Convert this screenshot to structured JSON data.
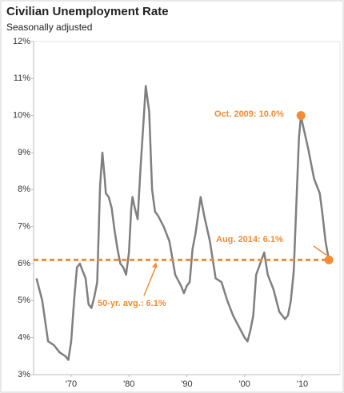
{
  "chart_data": {
    "type": "line",
    "title": "Civilian Unemployment Rate",
    "subtitle": "Seasonally adjusted",
    "x": [
      1964.0,
      1965.0,
      1966.0,
      1967.0,
      1968.0,
      1969.0,
      1969.5,
      1970.0,
      1970.5,
      1971.0,
      1971.5,
      1972.0,
      1972.5,
      1973.0,
      1973.5,
      1974.0,
      1974.5,
      1975.0,
      1975.4,
      1975.8,
      1976.0,
      1976.5,
      1977.0,
      1977.5,
      1978.0,
      1978.5,
      1979.0,
      1979.5,
      1980.0,
      1980.4,
      1980.6,
      1981.0,
      1981.5,
      1982.0,
      1982.5,
      1982.9,
      1983.5,
      1984.0,
      1984.5,
      1985.0,
      1986.0,
      1987.0,
      1988.0,
      1989.0,
      1989.5,
      1990.0,
      1990.5,
      1991.0,
      1991.5,
      1992.4,
      1993.0,
      1994.0,
      1995.0,
      1996.0,
      1997.0,
      1998.0,
      1999.0,
      2000.0,
      2000.5,
      2001.0,
      2001.5,
      2002.0,
      2003.4,
      2004.0,
      2005.0,
      2006.0,
      2007.0,
      2007.5,
      2008.0,
      2008.5,
      2009.0,
      2009.4,
      2009.75,
      2010.0,
      2011.0,
      2012.0,
      2013.0,
      2013.5,
      2014.0,
      2014.58
    ],
    "series": [
      {
        "name": "Unemployment rate",
        "color": "#7f7f7f",
        "values": [
          5.6,
          5.0,
          3.9,
          3.8,
          3.6,
          3.5,
          3.4,
          3.9,
          5.0,
          5.9,
          6.0,
          5.8,
          5.6,
          4.9,
          4.8,
          5.1,
          5.5,
          8.1,
          9.0,
          8.3,
          7.9,
          7.8,
          7.5,
          6.9,
          6.4,
          6.0,
          5.9,
          5.7,
          6.3,
          7.5,
          7.8,
          7.5,
          7.2,
          8.6,
          9.8,
          10.8,
          10.1,
          8.0,
          7.4,
          7.3,
          7.0,
          6.6,
          5.7,
          5.4,
          5.2,
          5.4,
          5.5,
          6.4,
          6.8,
          7.8,
          7.3,
          6.6,
          5.6,
          5.5,
          5.0,
          4.6,
          4.3,
          4.0,
          3.9,
          4.2,
          4.6,
          5.7,
          6.3,
          5.7,
          5.3,
          4.7,
          4.5,
          4.6,
          5.0,
          5.8,
          7.8,
          9.4,
          10.0,
          9.8,
          9.1,
          8.3,
          7.9,
          7.3,
          6.6,
          6.1
        ]
      }
    ],
    "highlights": [
      {
        "label": "Oct. 2009: 10.0%",
        "x": 2009.75,
        "value": 10.0,
        "color": "#f58b33"
      },
      {
        "label": "Aug. 2014: 6.1%",
        "x": 2014.58,
        "value": 6.1,
        "color": "#f58b33"
      }
    ],
    "average": {
      "label": "50-yr. avg.: 6.1%",
      "value": 6.1,
      "color": "#f58b33"
    },
    "xlim": [
      1963.5,
      2016.5
    ],
    "xticks": [
      {
        "value": 1970,
        "label": "'70"
      },
      {
        "value": 1980,
        "label": "'80"
      },
      {
        "value": 1990,
        "label": "'90"
      },
      {
        "value": 2000,
        "label": "'00"
      },
      {
        "value": 2010,
        "label": "'10"
      }
    ],
    "ylim": [
      3,
      12
    ],
    "yticks": [
      {
        "value": 3,
        "label": "3%"
      },
      {
        "value": 4,
        "label": "4%"
      },
      {
        "value": 5,
        "label": "5%"
      },
      {
        "value": 6,
        "label": "6%"
      },
      {
        "value": 7,
        "label": "7%"
      },
      {
        "value": 8,
        "label": "8%"
      },
      {
        "value": 9,
        "label": "9%"
      },
      {
        "value": 10,
        "label": "10%"
      },
      {
        "value": 11,
        "label": "11%"
      },
      {
        "value": 12,
        "label": "12%"
      }
    ]
  }
}
